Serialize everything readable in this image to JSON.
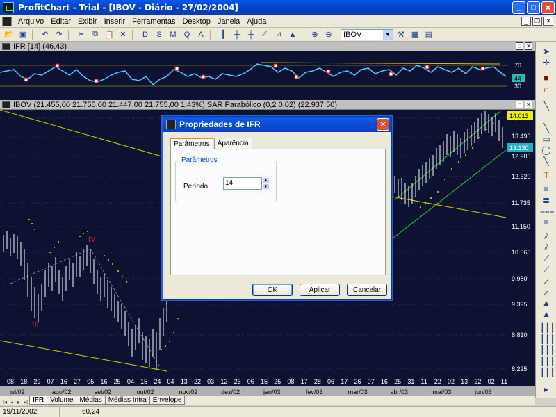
{
  "window": {
    "title": "ProfitChart - Trial - [IBOV - Diário - 27/02/2004]"
  },
  "menu": [
    "Arquivo",
    "Editar",
    "Exibir",
    "Inserir",
    "Ferramentas",
    "Desktop",
    "Janela",
    "Ajuda"
  ],
  "toolbar": {
    "symbol": "IBOV"
  },
  "ifr_panel": {
    "header": "IFR [14] (46,43)",
    "price_labels": [
      "70",
      "44",
      "30"
    ],
    "current_value": "44",
    "line_color": "#5bc8ff"
  },
  "price_panel": {
    "header": "IBOV (21.455,00  21.755,00  21.447,00  21.755,00  1,43%)  SAR Parabólico (0,2 0,02) (22.937,50)",
    "price_labels": [
      "14.013",
      "13.490",
      "13.130",
      "12.905",
      "12.320",
      "11.735",
      "11.150",
      "10.565",
      "9.980",
      "9.395",
      "8.810",
      "8.225"
    ],
    "highlight_labels": {
      "top": "14.013",
      "current": "13.130"
    },
    "wave_labels": [
      "IV",
      "III"
    ],
    "day_labels": [
      "08",
      "18",
      "29",
      "07",
      "16",
      "27",
      "05",
      "16",
      "25",
      "04",
      "15",
      "24",
      "04",
      "13",
      "22",
      "03",
      "12",
      "25",
      "06",
      "15",
      "25",
      "08",
      "17",
      "28",
      "06",
      "17",
      "26",
      "07",
      "16",
      "25",
      "31",
      "11",
      "22",
      "02",
      "13",
      "22",
      "02",
      "11"
    ],
    "month_labels": [
      "jul/02",
      "ago/02",
      "set/02",
      "out/02",
      "nov/02",
      "dez/02",
      "jan/03",
      "fev/03",
      "mar/03",
      "abr/03",
      "mai/03",
      "jun/03"
    ],
    "colors": {
      "background": "#0d1233",
      "sar": "#e8e000",
      "trendline": "#d8d000",
      "support": "#2fc82f"
    }
  },
  "dialog": {
    "title": "Propriedades de IFR",
    "tabs": [
      "Parâmetros",
      "Aparência"
    ],
    "group_label": "Parâmetros",
    "field_label": "Período:",
    "period_value": "14",
    "buttons": {
      "ok": "OK",
      "apply": "Aplicar",
      "cancel": "Cancelar"
    }
  },
  "bottom_tabs": [
    "IFR",
    "Volume",
    "Médias",
    "Médias Intra",
    "Envelope"
  ],
  "status": {
    "date": "19/11/2002",
    "value": "60,24"
  }
}
